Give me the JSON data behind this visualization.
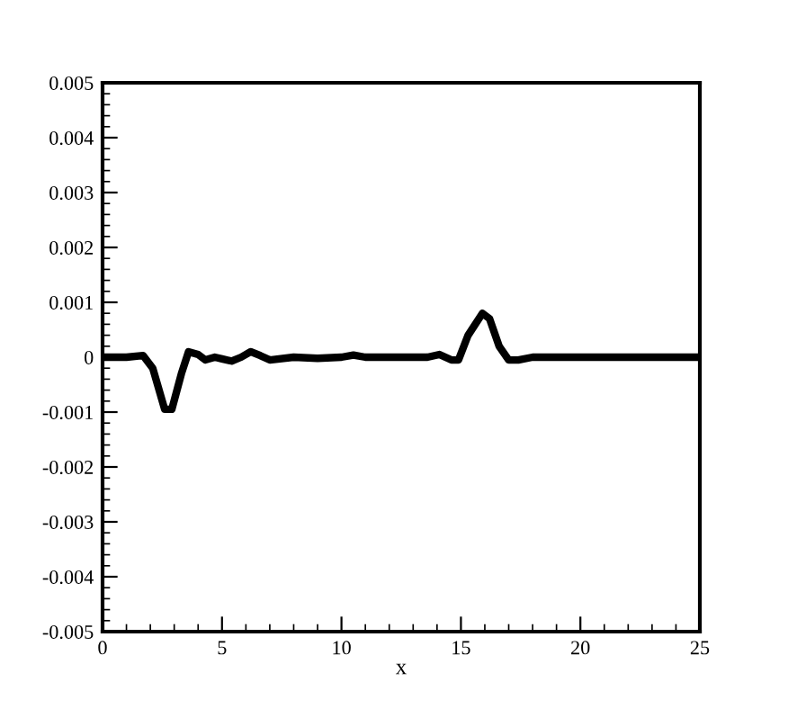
{
  "chart_data": {
    "type": "line",
    "xlabel": "x",
    "series": [
      {
        "color": "#000000",
        "x": [
          0,
          1,
          1.7,
          2.1,
          2.6,
          2.9,
          3.3,
          3.6,
          4.0,
          4.3,
          4.7,
          5.0,
          5.4,
          5.8,
          6.2,
          6.6,
          7.0,
          8,
          9,
          10,
          10.5,
          11,
          12,
          13,
          13.6,
          14.1,
          14.6,
          14.9,
          15.3,
          15.9,
          16.2,
          16.6,
          17.0,
          17.4,
          18,
          19,
          25
        ],
        "values": [
          0,
          0,
          3e-05,
          -0.0002,
          -0.00095,
          -0.00095,
          -0.0003,
          0.0001,
          5e-05,
          -5e-05,
          0,
          -3e-05,
          -7e-05,
          0,
          0.0001,
          3e-05,
          -5e-05,
          0,
          -2e-05,
          0,
          4e-05,
          0,
          0,
          0,
          0,
          5e-05,
          -5e-05,
          -5e-05,
          0.0004,
          0.0008,
          0.0007,
          0.0002,
          -5e-05,
          -5e-05,
          0,
          0,
          0
        ]
      }
    ],
    "xlim": [
      0,
      25
    ],
    "xticks": [
      0,
      5,
      10,
      15,
      20,
      25
    ],
    "ylim": [
      -0.005,
      0.005
    ],
    "yticks": [
      -0.005,
      -0.004,
      -0.003,
      -0.002,
      -0.001,
      0,
      0.001,
      0.002,
      0.003,
      0.004,
      0.005
    ],
    "grid": false,
    "legend": false,
    "marker": "none",
    "line_style": "solid"
  }
}
